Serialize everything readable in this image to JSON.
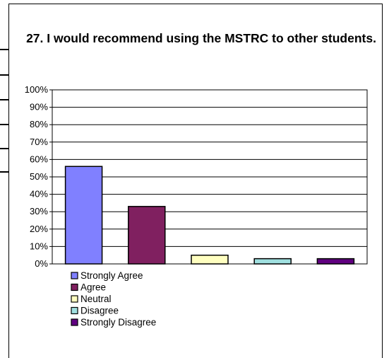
{
  "chart_data": {
    "type": "bar",
    "title": "27. I would recommend using the MSTRC to other students.",
    "categories": [
      "Strongly Agree",
      "Agree",
      "Neutral",
      "Disagree",
      "Strongly Disagree"
    ],
    "values": [
      56,
      33,
      5,
      3,
      3
    ],
    "colors": [
      "#8080ff",
      "#802060",
      "#ffffc0",
      "#a0e0e0",
      "#600080"
    ],
    "ylim": [
      0,
      100
    ],
    "yticks": [
      "0%",
      "10%",
      "20%",
      "30%",
      "40%",
      "50%",
      "60%",
      "70%",
      "80%",
      "90%",
      "100%"
    ],
    "grid": true,
    "legend": "bottom-left"
  }
}
